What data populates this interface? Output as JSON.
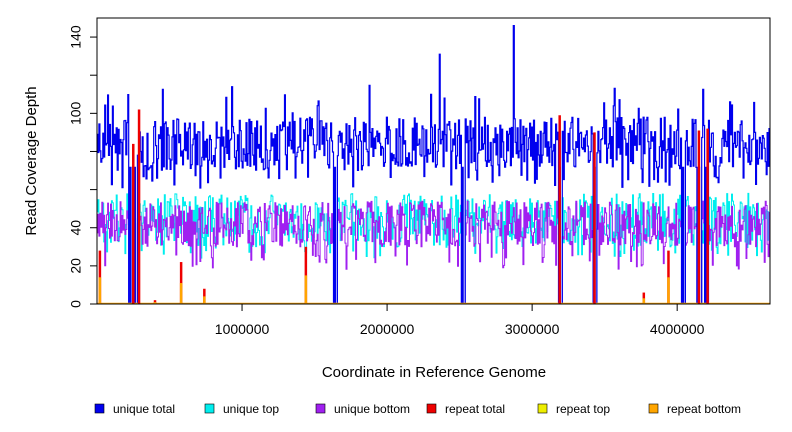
{
  "chart_data": {
    "type": "line",
    "title": "",
    "xlabel": "Coordinate in Reference Genome",
    "ylabel": "Read Coverage Depth",
    "xlim": [
      0,
      4640000
    ],
    "ylim": [
      0,
      150
    ],
    "x_ticks": [
      {
        "value": 1000000,
        "label": "1000000"
      },
      {
        "value": 2000000,
        "label": "2000000"
      },
      {
        "value": 3000000,
        "label": "3000000"
      },
      {
        "value": 4000000,
        "label": "4000000"
      }
    ],
    "y_ticks": [
      {
        "value": 0,
        "label": "0"
      },
      {
        "value": 20,
        "label": "20"
      },
      {
        "value": 40,
        "label": "40"
      },
      {
        "value": 60,
        "label": ""
      },
      {
        "value": 80,
        "label": ""
      },
      {
        "value": 100,
        "label": "100"
      },
      {
        "value": 120,
        "label": ""
      },
      {
        "value": 140,
        "label": "140"
      }
    ],
    "legend_position": "bottom",
    "series": [
      {
        "name": "unique total",
        "color": "#0000ee",
        "typical_range": [
          65,
          100
        ],
        "peak": {
          "x": 2870000,
          "y": 146
        }
      },
      {
        "name": "unique top",
        "color": "#00eeee",
        "typical_range": [
          25,
          60
        ]
      },
      {
        "name": "unique bottom",
        "color": "#a020f0",
        "typical_range": [
          25,
          55
        ]
      },
      {
        "name": "repeat total",
        "color": "#ee0000"
      },
      {
        "name": "repeat top",
        "color": "#eeee00"
      },
      {
        "name": "repeat bottom",
        "color": "#ffa500"
      }
    ],
    "dropouts_x": [
      230000,
      260000,
      1640000,
      2520000,
      3190000,
      3430000,
      4040000,
      4150000,
      4200000
    ],
    "repeat_spikes": [
      {
        "x": 20000,
        "total": 28,
        "bottom": 14
      },
      {
        "x": 250000,
        "total": 84,
        "bottom": 0
      },
      {
        "x": 290000,
        "total": 102,
        "bottom": 0
      },
      {
        "x": 400000,
        "total": 2,
        "bottom": 1
      },
      {
        "x": 580000,
        "total": 22,
        "bottom": 11
      },
      {
        "x": 740000,
        "total": 8,
        "bottom": 4
      },
      {
        "x": 1440000,
        "total": 30,
        "bottom": 15
      },
      {
        "x": 3190000,
        "total": 99,
        "bottom": 0
      },
      {
        "x": 3430000,
        "total": 90,
        "bottom": 0
      },
      {
        "x": 3770000,
        "total": 6,
        "bottom": 3
      },
      {
        "x": 3940000,
        "total": 28,
        "bottom": 14
      },
      {
        "x": 4150000,
        "total": 91,
        "bottom": 0
      },
      {
        "x": 4210000,
        "total": 92,
        "bottom": 0
      }
    ]
  }
}
